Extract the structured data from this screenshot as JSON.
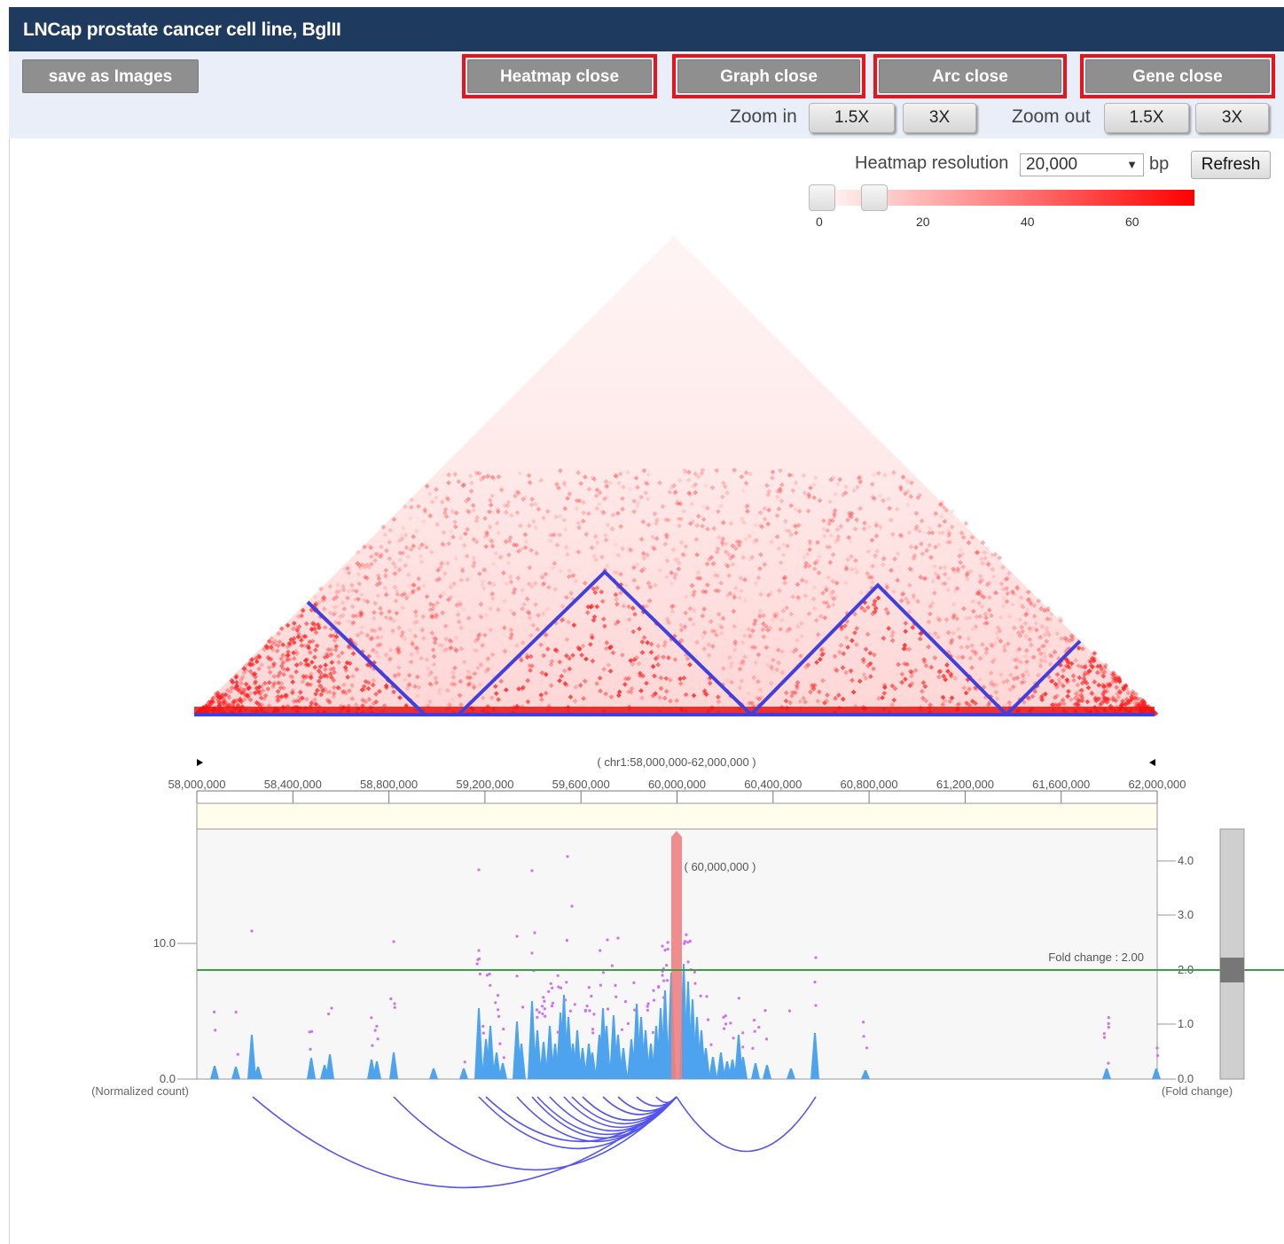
{
  "window": {
    "title": "LNCap prostate cancer cell line, BglII"
  },
  "toolbar": {
    "save_label": "save as Images",
    "heatmap_close": "Heatmap close",
    "graph_close": "Graph close",
    "arc_close": "Arc close",
    "gene_close": "Gene close",
    "zoom_in_label": "Zoom in",
    "zoom_out_label": "Zoom out",
    "zoom_in_options": [
      "1.5X",
      "3X"
    ],
    "zoom_out_options": [
      "1.5X",
      "3X"
    ]
  },
  "heatmap": {
    "resolution_label": "Heatmap resolution",
    "resolution_value": "20,000",
    "unit": "bp",
    "refresh_label": "Refresh",
    "color_scale_ticks": [
      "0",
      "20",
      "40",
      "60"
    ],
    "color_min": "#ffffff",
    "color_max": "#ff0000",
    "domain_outline_color": "#4040e0"
  },
  "graph": {
    "region_label": "( chr1:58,000,000-62,000,000 )",
    "prev_icon": "triangle-left-icon",
    "next_icon": "triangle-right-icon",
    "axis_ticks": [
      "58,000,000",
      "58,400,000",
      "58,800,000",
      "59,200,000",
      "59,600,000",
      "60,000,000",
      "60,400,000",
      "60,800,000",
      "61,200,000",
      "61,600,000",
      "62,000,000"
    ],
    "viewpoint_label": "( 60,000,000 )",
    "left_axis_ticks": [
      "10.0",
      "0.0"
    ],
    "left_axis_label": "(Normalized count)",
    "right_axis_ticks": [
      "4.0",
      "3.0",
      "2.0",
      "1.0",
      "0.0"
    ],
    "right_axis_label": "(Fold change)",
    "fold_change_label": "Fold change : 2.00",
    "peak_color": "#4ea3ee",
    "viewpoint_color": "#f08080",
    "threshold_color": "#3aa040",
    "arc_color": "#5555ee"
  }
}
